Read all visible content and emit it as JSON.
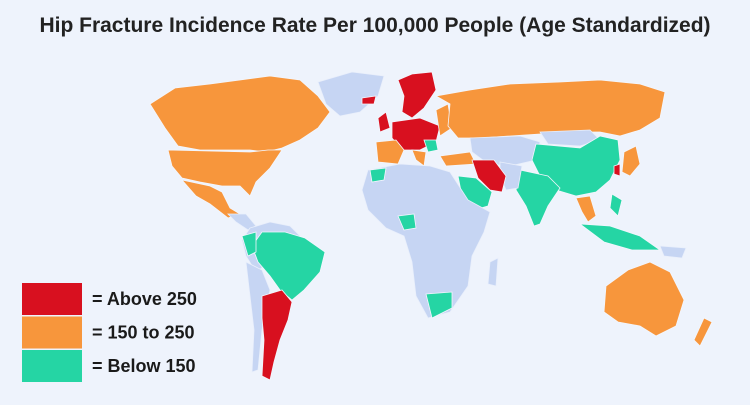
{
  "title": "Hip Fracture Incidence Rate Per 100,000 People (Age Standardized)",
  "legend": [
    {
      "label": "= Above 250",
      "color": "#d8101f"
    },
    {
      "label": "= 150 to 250",
      "color": "#f7963c"
    },
    {
      "label": "= Below 150",
      "color": "#25d5a4"
    }
  ]
}
